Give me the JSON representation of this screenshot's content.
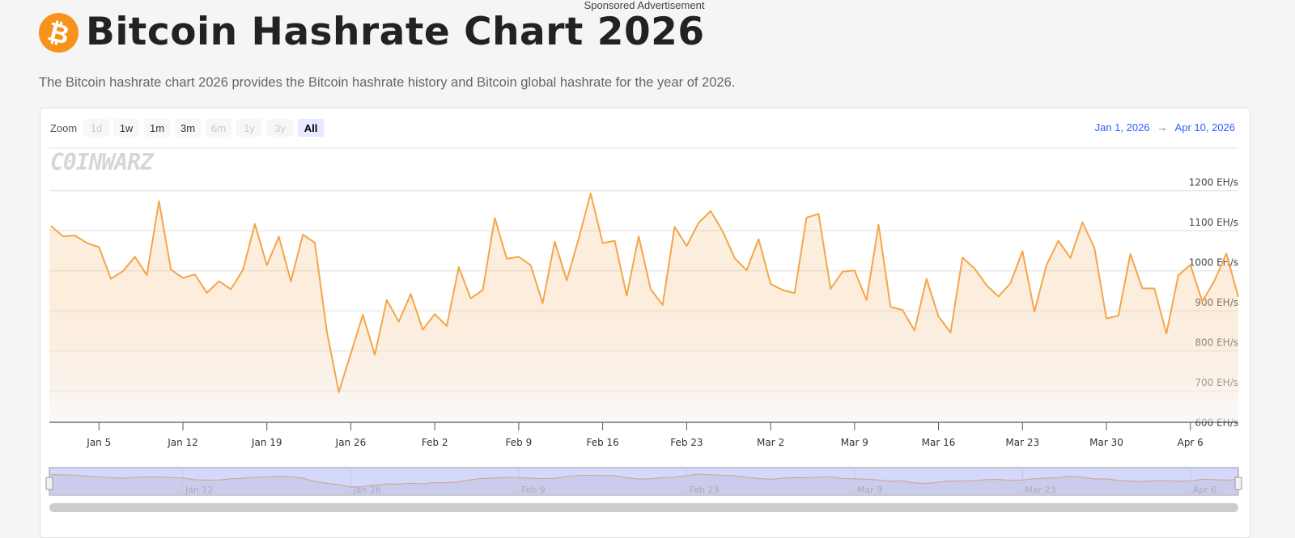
{
  "ad_label": "Sponsored Advertisement",
  "header": {
    "logo_icon": "bitcoin-icon",
    "logo_color": "#f7931a",
    "title": "Bitcoin Hashrate Chart 2026",
    "subtitle": "The Bitcoin hashrate chart 2026 provides the Bitcoin hashrate history and Bitcoin global hashrate for the year of 2026."
  },
  "toolbar": {
    "zoom_label": "Zoom",
    "buttons": [
      {
        "label": "1d",
        "enabled": false
      },
      {
        "label": "1w",
        "enabled": true
      },
      {
        "label": "1m",
        "enabled": true
      },
      {
        "label": "3m",
        "enabled": true
      },
      {
        "label": "6m",
        "enabled": false
      },
      {
        "label": "1y",
        "enabled": false
      },
      {
        "label": "3y",
        "enabled": false
      },
      {
        "label": "All",
        "enabled": true,
        "selected": true
      }
    ],
    "range_from": "Jan 1, 2026",
    "range_arrow": "→",
    "range_to": "Apr 10, 2026"
  },
  "watermark": "COINWARZ",
  "chart_data": {
    "type": "area",
    "line_color": "#f5a54a",
    "x_start": "2026-01-01",
    "x_end": "2026-04-10",
    "x_interval": "daily",
    "y_unit": "EH/s",
    "ylim": [
      600,
      1200
    ],
    "y_ticks": [
      "600 EH/s",
      "700 EH/s",
      "800 EH/s",
      "900 EH/s",
      "1000 EH/s",
      "1100 EH/s",
      "1200 EH/s"
    ],
    "x_ticks": [
      "Jan 5",
      "Jan 12",
      "Jan 19",
      "Jan 26",
      "Feb 2",
      "Feb 9",
      "Feb 16",
      "Feb 23",
      "Mar 2",
      "Mar 9",
      "Mar 16",
      "Mar 23",
      "Mar 30",
      "Apr 6"
    ],
    "grid": true,
    "values": [
      1112,
      1086,
      1088,
      1069,
      1059,
      980,
      999,
      1035,
      989,
      1174,
      1003,
      982,
      991,
      945,
      974,
      954,
      1002,
      1117,
      1014,
      1085,
      974,
      1090,
      1070,
      849,
      697,
      794,
      890,
      790,
      927,
      873,
      942,
      853,
      892,
      862,
      1009,
      931,
      952,
      1132,
      1030,
      1035,
      1014,
      919,
      1073,
      976,
      1080,
      1193,
      1069,
      1075,
      938,
      1086,
      954,
      915,
      1110,
      1062,
      1120,
      1149,
      1099,
      1032,
      1001,
      1079,
      967,
      952,
      944,
      1133,
      1142,
      955,
      998,
      1001,
      927,
      1115,
      910,
      902,
      851,
      980,
      886,
      846,
      1033,
      1006,
      964,
      936,
      969,
      1049,
      898,
      1014,
      1075,
      1032,
      1121,
      1057,
      881,
      888,
      1042,
      956,
      956,
      843,
      989,
      1015,
      923,
      975,
      1043,
      935
    ],
    "navigator": {
      "fill_color": "#d4d8fb",
      "x_ticks": [
        "Jan 12",
        "Jan 26",
        "Feb 9",
        "Feb 23",
        "Mar 9",
        "Mar 23",
        "Apr 6"
      ]
    }
  }
}
